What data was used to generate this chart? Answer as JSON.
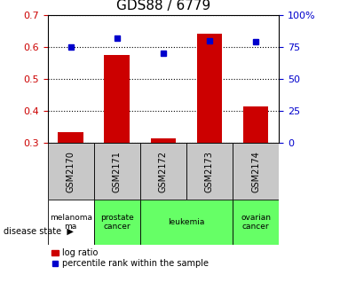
{
  "title": "GDS88 / 6779",
  "samples": [
    "GSM2170",
    "GSM2171",
    "GSM2172",
    "GSM2173",
    "GSM2174"
  ],
  "log_ratio": [
    0.333,
    0.575,
    0.315,
    0.64,
    0.415
  ],
  "percentile": [
    75,
    82,
    70,
    80,
    79
  ],
  "left_ylim": [
    0.3,
    0.7
  ],
  "left_yticks": [
    0.3,
    0.4,
    0.5,
    0.6,
    0.7
  ],
  "right_ylim": [
    0,
    100
  ],
  "right_yticks": [
    0,
    25,
    50,
    75,
    100
  ],
  "right_yticklabels": [
    "0",
    "25",
    "50",
    "75",
    "100%"
  ],
  "bar_color": "#cc0000",
  "dot_color": "#0000cc",
  "bar_width": 0.55,
  "disease_groups": [
    {
      "label": "melanoma\nma",
      "start": 0,
      "end": 0,
      "color": "#ffffff"
    },
    {
      "label": "prostate\ncancer",
      "start": 1,
      "end": 1,
      "color": "#66ff66"
    },
    {
      "label": "leukemia",
      "start": 2,
      "end": 3,
      "color": "#66ff66"
    },
    {
      "label": "ovarian\ncancer",
      "start": 4,
      "end": 4,
      "color": "#66ff66"
    }
  ],
  "legend_bar_label": "log ratio",
  "legend_dot_label": "percentile rank within the sample",
  "left_label_color": "#cc0000",
  "right_label_color": "#0000cc"
}
